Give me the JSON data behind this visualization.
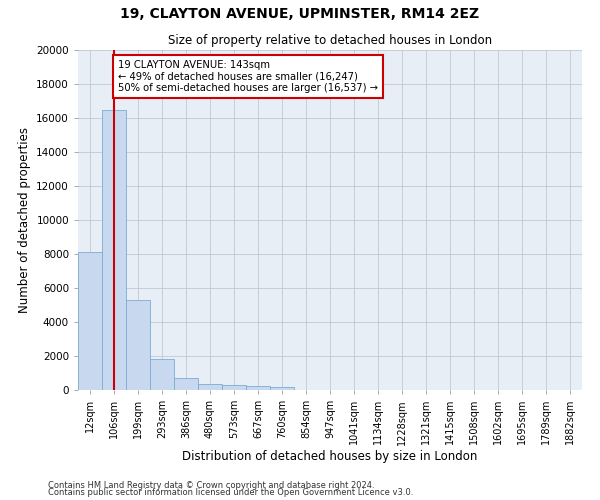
{
  "title_line1": "19, CLAYTON AVENUE, UPMINSTER, RM14 2EZ",
  "title_line2": "Size of property relative to detached houses in London",
  "xlabel": "Distribution of detached houses by size in London",
  "ylabel": "Number of detached properties",
  "categories": [
    "12sqm",
    "106sqm",
    "199sqm",
    "293sqm",
    "386sqm",
    "480sqm",
    "573sqm",
    "667sqm",
    "760sqm",
    "854sqm",
    "947sqm",
    "1041sqm",
    "1134sqm",
    "1228sqm",
    "1321sqm",
    "1415sqm",
    "1508sqm",
    "1602sqm",
    "1695sqm",
    "1789sqm",
    "1882sqm"
  ],
  "values": [
    8100,
    16500,
    5300,
    1850,
    700,
    380,
    290,
    220,
    170,
    0,
    0,
    0,
    0,
    0,
    0,
    0,
    0,
    0,
    0,
    0,
    0
  ],
  "bar_color": "#c8d8ee",
  "bar_edge_color": "#7aadd4",
  "vline_x": 1,
  "vline_color": "#cc0000",
  "annotation_title": "19 CLAYTON AVENUE: 143sqm",
  "annotation_line2": "← 49% of detached houses are smaller (16,247)",
  "annotation_line3": "50% of semi-detached houses are larger (16,537) →",
  "annotation_box_color": "#cc0000",
  "ylim": [
    0,
    20000
  ],
  "yticks": [
    0,
    2000,
    4000,
    6000,
    8000,
    10000,
    12000,
    14000,
    16000,
    18000,
    20000
  ],
  "grid_color": "#c0c8d8",
  "bg_color": "#e8eef5",
  "footer_line1": "Contains HM Land Registry data © Crown copyright and database right 2024.",
  "footer_line2": "Contains public sector information licensed under the Open Government Licence v3.0."
}
